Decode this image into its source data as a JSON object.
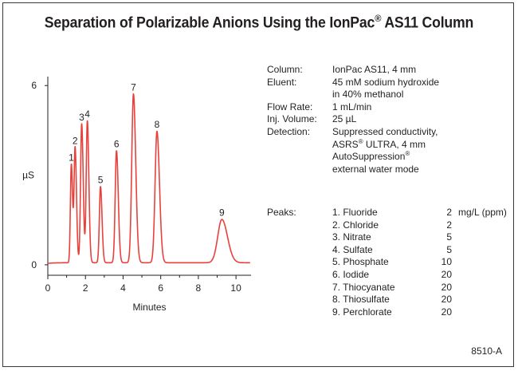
{
  "title": {
    "main": "Separation of Polarizable Anions Using the IonPac",
    "reg": "®",
    "tail": " AS11 Column"
  },
  "chart_data": {
    "type": "line",
    "xlabel": "Minutes",
    "ylabel": "µS",
    "xlim": [
      0,
      10.8
    ],
    "ylim": [
      -0.35,
      6.3
    ],
    "xticks": [
      0,
      2,
      4,
      6,
      8,
      10
    ],
    "yticks": [
      0,
      6
    ],
    "line_color": "#e8413c",
    "baseline": 0.05,
    "peaks": [
      {
        "label": "1",
        "time": 1.25,
        "height": 3.3,
        "width": 0.05
      },
      {
        "label": "2",
        "time": 1.45,
        "height": 3.85,
        "width": 0.055
      },
      {
        "label": "3",
        "time": 1.8,
        "height": 4.65,
        "width": 0.06
      },
      {
        "label": "4",
        "time": 2.1,
        "height": 4.75,
        "width": 0.06
      },
      {
        "label": "5",
        "time": 2.8,
        "height": 2.55,
        "width": 0.06
      },
      {
        "label": "6",
        "time": 3.65,
        "height": 3.75,
        "width": 0.07
      },
      {
        "label": "7",
        "time": 4.55,
        "height": 5.65,
        "width": 0.09
      },
      {
        "label": "8",
        "time": 5.8,
        "height": 4.4,
        "width": 0.1
      },
      {
        "label": "9",
        "time": 9.25,
        "height": 1.45,
        "width": 0.22
      }
    ]
  },
  "conditions": [
    {
      "label": "Column:",
      "lines": [
        "IonPac AS11, 4 mm"
      ]
    },
    {
      "label": "Eluent:",
      "lines": [
        "45 mM sodium hydroxide",
        "in 40% methanol"
      ]
    },
    {
      "label": "Flow Rate:",
      "lines": [
        "1 mL/min"
      ]
    },
    {
      "label": "Inj. Volume:",
      "lines": [
        "25 µL"
      ]
    },
    {
      "label": "Detection:",
      "lines": [
        "Suppressed conductivity,",
        "ASRS® ULTRA, 4 mm",
        "AutoSuppression®",
        "external water mode"
      ]
    }
  ],
  "peaks_label": "Peaks:",
  "peaks_list": [
    {
      "name": "1. Fluoride",
      "conc": "2",
      "unit": "mg/L  (ppm)"
    },
    {
      "name": "2. Chloride",
      "conc": "2",
      "unit": ""
    },
    {
      "name": "3. Nitrate",
      "conc": "5",
      "unit": ""
    },
    {
      "name": "4. Sulfate",
      "conc": "5",
      "unit": ""
    },
    {
      "name": "5. Phosphate",
      "conc": "10",
      "unit": ""
    },
    {
      "name": "6. Iodide",
      "conc": "20",
      "unit": ""
    },
    {
      "name": "7. Thiocyanate",
      "conc": "20",
      "unit": ""
    },
    {
      "name": "8. Thiosulfate",
      "conc": "20",
      "unit": ""
    },
    {
      "name": "9. Perchlorate",
      "conc": "20",
      "unit": ""
    }
  ],
  "figure_code": "8510-A"
}
